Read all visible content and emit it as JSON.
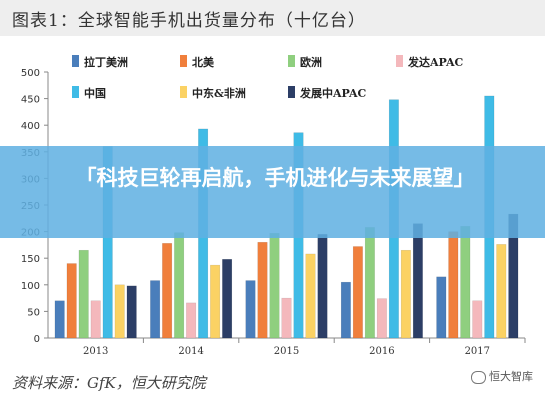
{
  "header": {
    "title": "图表1：全球智能手机出货量分布（十亿台）"
  },
  "overlay": {
    "text": "「科技巨轮再启航，手机进化与未来展望」"
  },
  "footer": {
    "source": "资料来源：GfK，恒大研究院",
    "watermark": "恒大智库",
    "watermark_icon": "wechat-icon"
  },
  "chart_data": {
    "type": "bar",
    "categories": [
      "2013",
      "2014",
      "2015",
      "2016",
      "2017"
    ],
    "ylim": [
      0,
      500
    ],
    "yticks": [
      0,
      50,
      100,
      150,
      200,
      250,
      300,
      350,
      400,
      450,
      500
    ],
    "grid": false,
    "legend_position": "top",
    "series": [
      {
        "name": "拉丁美洲",
        "color": "#4a7ebb",
        "values": [
          70,
          108,
          108,
          105,
          115
        ]
      },
      {
        "name": "北美",
        "color": "#f07f3c",
        "values": [
          140,
          178,
          180,
          172,
          200
        ]
      },
      {
        "name": "欧洲",
        "color": "#8fcf7f",
        "values": [
          165,
          198,
          197,
          208,
          210
        ]
      },
      {
        "name": "发达APAC",
        "color": "#f4b8bc",
        "values": [
          70,
          66,
          75,
          74,
          70
        ]
      },
      {
        "name": "中国",
        "color": "#3fbbe6",
        "values": [
          360,
          393,
          386,
          448,
          455
        ]
      },
      {
        "name": "中东&非洲",
        "color": "#fbd264",
        "values": [
          100,
          137,
          158,
          165,
          176
        ]
      },
      {
        "name": "发展中APAC",
        "color": "#2c3e66",
        "values": [
          98,
          148,
          195,
          215,
          233
        ]
      }
    ]
  }
}
